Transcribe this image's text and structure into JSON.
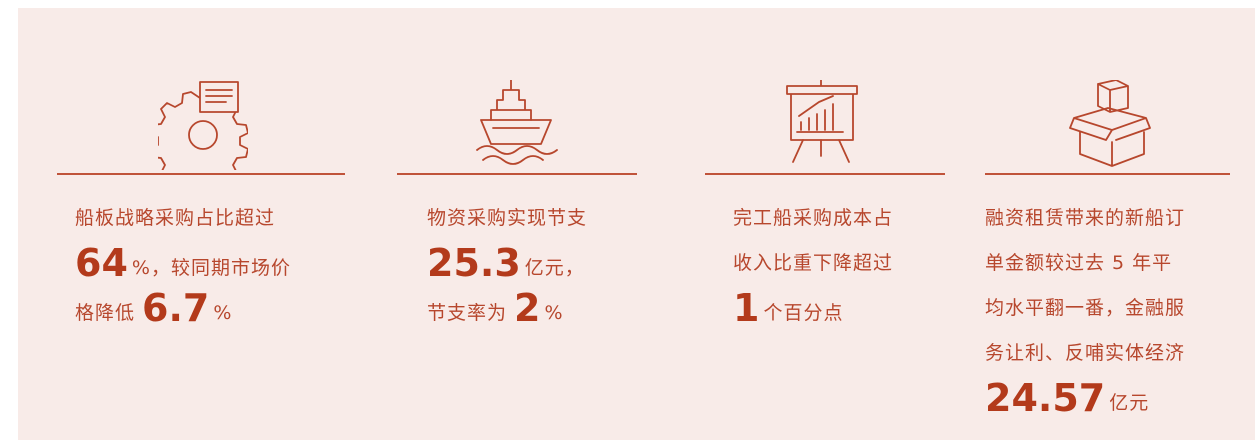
{
  "cards": [
    {
      "lines": [
        [
          {
            "text": "船板战略采购占比超过"
          }
        ],
        [
          {
            "number": "64"
          },
          {
            "text": "%，较同期市场价"
          }
        ],
        [
          {
            "text": "格降低 "
          },
          {
            "number": "6.7"
          },
          {
            "text": "%"
          }
        ]
      ]
    },
    {
      "lines": [
        [
          {
            "text": "物资采购实现节支"
          }
        ],
        [
          {
            "number": "25.3"
          },
          {
            "text": "亿元，"
          }
        ],
        [
          {
            "text": "节支率为 "
          },
          {
            "number": "2"
          },
          {
            "text": "%"
          }
        ]
      ]
    },
    {
      "lines": [
        [
          {
            "text": "完工船采购成本占"
          }
        ],
        [
          {
            "text": "收入比重下降超过"
          }
        ],
        [
          {
            "number": "1"
          },
          {
            "text": "个百分点"
          }
        ]
      ]
    },
    {
      "lines": [
        [
          {
            "text": "融资租赁带来的新船订"
          }
        ],
        [
          {
            "text": "单金额较过去 5 年平"
          }
        ],
        [
          {
            "text": "均水平翻一番，金融服"
          }
        ],
        [
          {
            "text": "务让利、反哺实体经济"
          }
        ],
        [
          {
            "number": "24.57"
          },
          {
            "text": "亿元"
          }
        ]
      ]
    }
  ]
}
